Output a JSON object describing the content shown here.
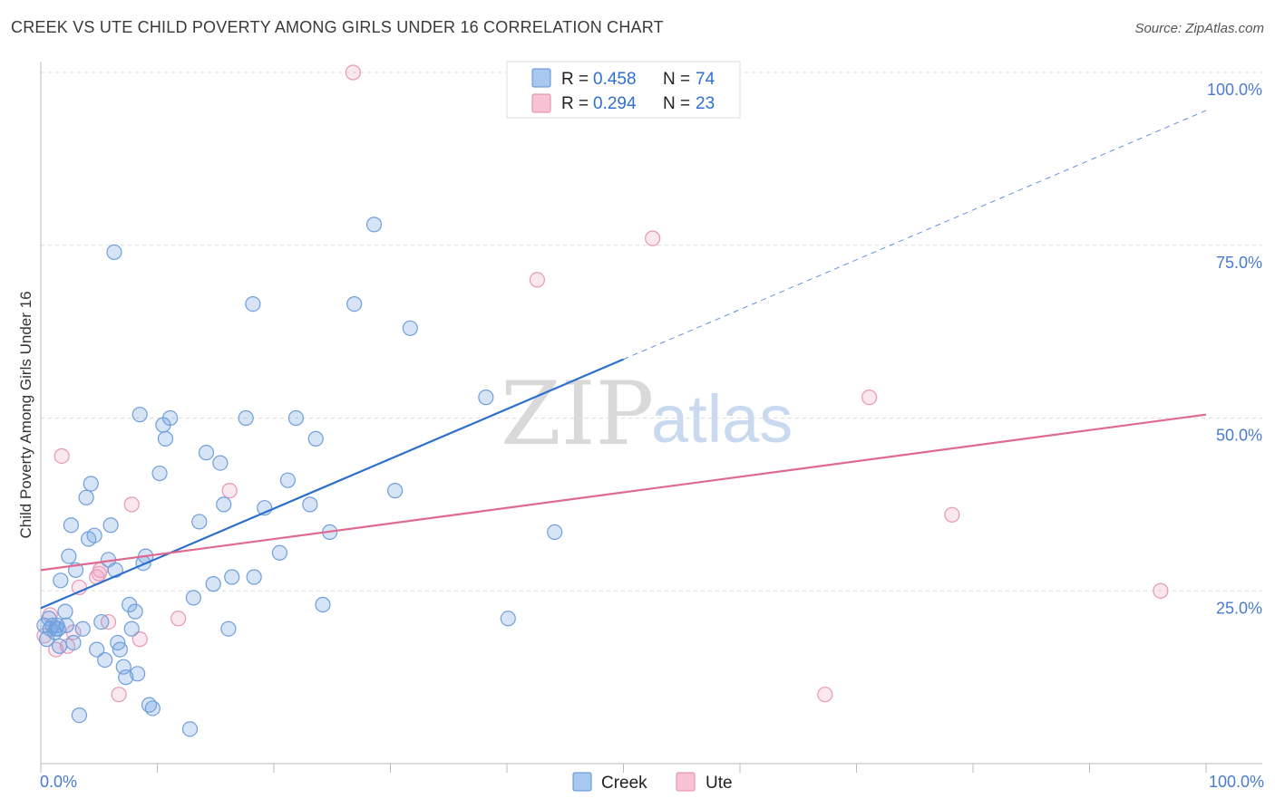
{
  "title": "CREEK VS UTE CHILD POVERTY AMONG GIRLS UNDER 16 CORRELATION CHART",
  "source": "Source: ZipAtlas.com",
  "watermark": {
    "part1": "ZIP",
    "part2": "atlas"
  },
  "legend_top": {
    "r_label": "R =",
    "n_label": "N =",
    "entries": [
      {
        "r": "0.458",
        "n": "74",
        "color": "#a9c8f0",
        "border": "#5a8fd6"
      },
      {
        "r": "0.294",
        "n": "23",
        "color": "#f7c2d3",
        "border": "#e08aa8"
      }
    ]
  },
  "legend_bottom": [
    {
      "label": "Creek",
      "color": "#a9c8f0",
      "border": "#5a8fd6"
    },
    {
      "label": "Ute",
      "color": "#f7c2d3",
      "border": "#e08aa8"
    }
  ],
  "colors": {
    "creek_fill": "rgba(120,165,225,0.30)",
    "creek_stroke": "#6f9fdc",
    "creek_line": "#2d6fcc",
    "ute_fill": "rgba(240,160,190,0.25)",
    "ute_stroke": "#e897b4",
    "ute_line": "#e0698f",
    "grid": "#dcdcdc",
    "axis": "#bbbbbb"
  },
  "chart_data": {
    "type": "scatter",
    "title": "CREEK VS UTE CHILD POVERTY AMONG GIRLS UNDER 16 CORRELATION CHART",
    "xlabel": "",
    "ylabel": "Child Poverty Among Girls Under 16",
    "xlim": [
      0,
      100
    ],
    "ylim": [
      0,
      100
    ],
    "x_tick_labels": [
      "0.0%",
      "100.0%"
    ],
    "y_ticks": [
      25,
      50,
      75,
      100
    ],
    "y_tick_labels": [
      "25.0%",
      "50.0%",
      "75.0%",
      "100.0%"
    ],
    "grid": true,
    "series": [
      {
        "name": "Creek",
        "r": 0.458,
        "n": 74,
        "trend": {
          "x0": 0,
          "y0": 22.5,
          "x1": 50,
          "y1": 58.5,
          "dash_to_x": 100,
          "dash_to_y": 94.5
        },
        "points": [
          [
            0.3,
            20
          ],
          [
            0.5,
            18
          ],
          [
            0.7,
            21
          ],
          [
            0.8,
            19.5
          ],
          [
            1,
            20
          ],
          [
            1.2,
            19
          ],
          [
            1.3,
            19.5
          ],
          [
            1.4,
            20
          ],
          [
            1.5,
            19.5
          ],
          [
            1.6,
            17
          ],
          [
            1.7,
            26.5
          ],
          [
            2.1,
            22
          ],
          [
            2.2,
            20
          ],
          [
            2.4,
            30
          ],
          [
            2.6,
            34.5
          ],
          [
            2.8,
            17.5
          ],
          [
            3,
            28
          ],
          [
            3.3,
            7
          ],
          [
            3.6,
            19.5
          ],
          [
            3.9,
            38.5
          ],
          [
            4.1,
            32.5
          ],
          [
            4.3,
            40.5
          ],
          [
            4.6,
            33
          ],
          [
            4.8,
            16.5
          ],
          [
            5.2,
            20.5
          ],
          [
            5.5,
            15
          ],
          [
            5.8,
            29.5
          ],
          [
            6,
            34.5
          ],
          [
            6.4,
            28
          ],
          [
            6.6,
            17.5
          ],
          [
            6.8,
            16.5
          ],
          [
            7.1,
            14
          ],
          [
            7.3,
            12.5
          ],
          [
            7.6,
            23
          ],
          [
            7.8,
            19.5
          ],
          [
            8.1,
            22
          ],
          [
            8.3,
            13
          ],
          [
            8.5,
            50.5
          ],
          [
            8.8,
            29
          ],
          [
            9,
            30
          ],
          [
            9.3,
            8.5
          ],
          [
            9.6,
            8
          ],
          [
            10.2,
            42
          ],
          [
            10.5,
            49
          ],
          [
            10.7,
            47
          ],
          [
            11.1,
            50
          ],
          [
            12.8,
            5
          ],
          [
            13.1,
            24
          ],
          [
            13.6,
            35
          ],
          [
            14.2,
            45
          ],
          [
            14.8,
            26
          ],
          [
            15.4,
            43.5
          ],
          [
            15.7,
            37.5
          ],
          [
            16.1,
            19.5
          ],
          [
            16.4,
            27
          ],
          [
            17.6,
            50
          ],
          [
            18.2,
            66.5
          ],
          [
            18.3,
            27
          ],
          [
            19.2,
            37
          ],
          [
            20.5,
            30.5
          ],
          [
            21.2,
            41
          ],
          [
            21.9,
            50
          ],
          [
            23.1,
            37.5
          ],
          [
            23.6,
            47
          ],
          [
            24.2,
            23
          ],
          [
            24.8,
            33.5
          ],
          [
            26.9,
            66.5
          ],
          [
            28.6,
            78
          ],
          [
            30.4,
            39.5
          ],
          [
            31.7,
            63
          ],
          [
            38.2,
            53
          ],
          [
            40.1,
            21
          ],
          [
            44.1,
            33.5
          ],
          [
            6.3,
            74
          ]
        ]
      },
      {
        "name": "Ute",
        "r": 0.294,
        "n": 23,
        "trend": {
          "x0": 0,
          "y0": 28,
          "x1": 100,
          "y1": 50.5
        },
        "points": [
          [
            0.3,
            18.5
          ],
          [
            0.8,
            21.5
          ],
          [
            1.3,
            16.5
          ],
          [
            1.8,
            44.5
          ],
          [
            2.3,
            17
          ],
          [
            2.8,
            19
          ],
          [
            3.3,
            25.5
          ],
          [
            4.8,
            27
          ],
          [
            5.1,
            28
          ],
          [
            5.8,
            20.5
          ],
          [
            6.7,
            10
          ],
          [
            7.8,
            37.5
          ],
          [
            8.5,
            18
          ],
          [
            11.8,
            21
          ],
          [
            16.2,
            39.5
          ],
          [
            26.8,
            100
          ],
          [
            42.6,
            70
          ],
          [
            52.5,
            76
          ],
          [
            67.3,
            10
          ],
          [
            71.1,
            53
          ],
          [
            78.2,
            36
          ],
          [
            96.1,
            25
          ],
          [
            5,
            27.5
          ]
        ]
      }
    ]
  }
}
